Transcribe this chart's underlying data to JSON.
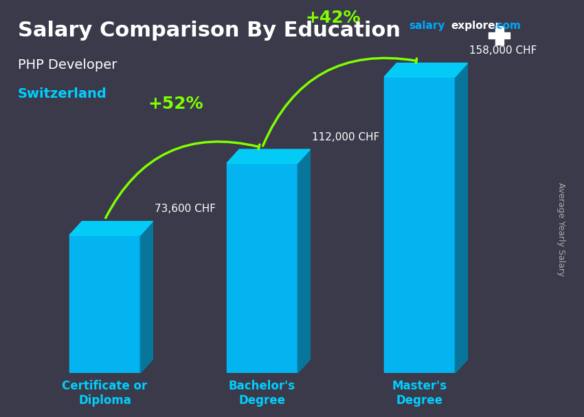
{
  "title": "Salary Comparison By Education",
  "subtitle_job": "PHP Developer",
  "subtitle_country": "Switzerland",
  "categories": [
    "Certificate or\nDiploma",
    "Bachelor's\nDegree",
    "Master's\nDegree"
  ],
  "values": [
    73600,
    112000,
    158000
  ],
  "value_labels": [
    "73,600 CHF",
    "112,000 CHF",
    "158,000 CHF"
  ],
  "pct_labels": [
    "+52%",
    "+42%"
  ],
  "bar_color": "#00BFFF",
  "bar_color_top": "#00D4FF",
  "bar_color_shadow": "#0080AA",
  "ylabel": "Average Yearly Salary",
  "site_name_salary": "salary",
  "site_name_explorer": "explorer",
  "site_name_com": ".com",
  "background_color": "#3a3a4a",
  "title_color": "#FFFFFF",
  "subtitle_job_color": "#FFFFFF",
  "subtitle_country_color": "#00CFFF",
  "category_color": "#00CFFF",
  "value_color": "#FFFFFF",
  "pct_color": "#7FFF00",
  "arrow_color": "#7FFF00",
  "flag_bg": "#CC0000",
  "ylabel_color": "#AAAAAA",
  "bar_width": 0.45,
  "ylim": [
    0,
    185000
  ]
}
